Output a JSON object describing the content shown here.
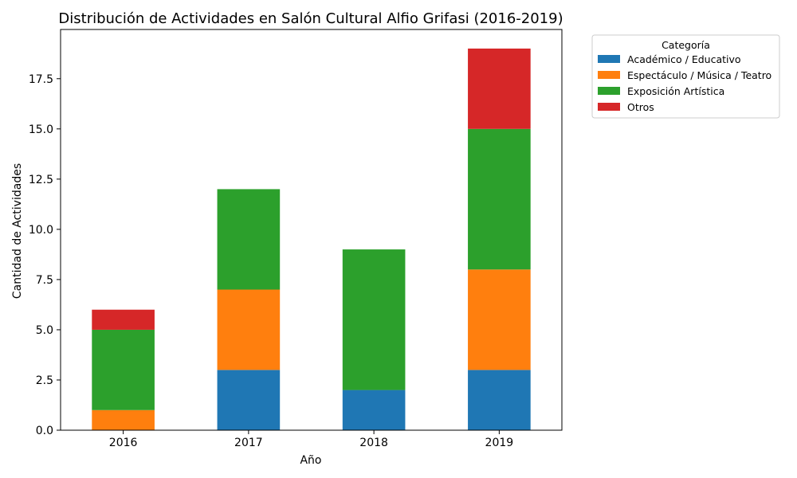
{
  "chart_data": {
    "type": "bar",
    "stacked": true,
    "title": "Distribución de Actividades en Salón Cultural Alfio Grifasi (2016-2019)",
    "xlabel": "Año",
    "ylabel": "Cantidad de Actividades",
    "categories": [
      "2016",
      "2017",
      "2018",
      "2019"
    ],
    "ylim": [
      0,
      19.95
    ],
    "yticks": [
      "0.0",
      "2.5",
      "5.0",
      "7.5",
      "10.0",
      "12.5",
      "15.0",
      "17.5"
    ],
    "legend_title": "Categoría",
    "legend_position": "outside-right",
    "grid": false,
    "series": [
      {
        "name": "Académico / Educativo",
        "color": "#1f77b4",
        "values": [
          0,
          3,
          2,
          3
        ]
      },
      {
        "name": "Espectáculo / Música / Teatro",
        "color": "#ff7f0e",
        "values": [
          1,
          4,
          0,
          5
        ]
      },
      {
        "name": "Exposición Artística",
        "color": "#2ca02c",
        "values": [
          4,
          5,
          7,
          7
        ]
      },
      {
        "name": "Otros",
        "color": "#d62728",
        "values": [
          1,
          0,
          0,
          4
        ]
      }
    ]
  }
}
